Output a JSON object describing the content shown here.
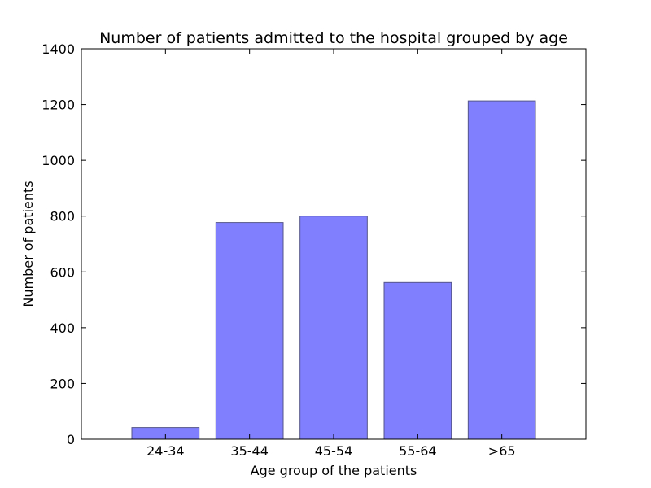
{
  "chart_data": {
    "type": "bar",
    "title": "Number of patients admitted to the hospital grouped by age",
    "xlabel": "Age group of the patients",
    "ylabel": "Number of patients",
    "categories": [
      "24-34",
      "35-44",
      "45-54",
      "55-64",
      ">65"
    ],
    "values": [
      42,
      777,
      800,
      562,
      1213
    ],
    "ylim": [
      0,
      1400
    ],
    "yticks": [
      0,
      200,
      400,
      600,
      800,
      1000,
      1200,
      1400
    ],
    "grid": false,
    "bar_color": "#8080ff",
    "bar_edge_color": "#55558a"
  }
}
